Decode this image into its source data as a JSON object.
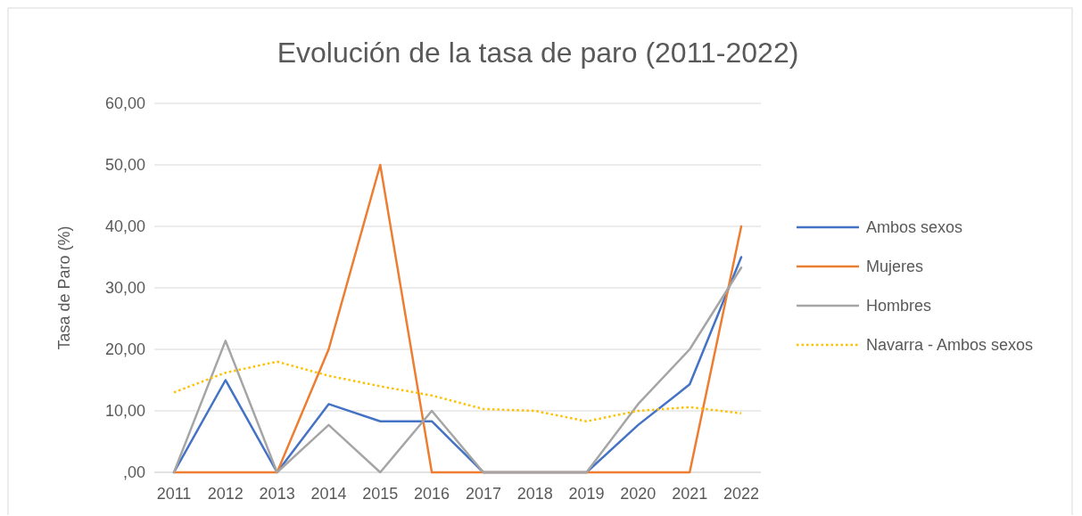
{
  "chart_data": {
    "type": "line",
    "title": "Evolución de la tasa de paro (2011-2022)",
    "ylabel": "Tasa de Paro (%)",
    "categories": [
      "2011",
      "2012",
      "2013",
      "2014",
      "2015",
      "2016",
      "2017",
      "2018",
      "2019",
      "2020",
      "2021",
      "2022"
    ],
    "series": [
      {
        "name": "Ambos sexos",
        "color": "#4472c4",
        "values": [
          0,
          15,
          0,
          11.1,
          8.3,
          8.3,
          0,
          0,
          0,
          7.7,
          14.3,
          35
        ]
      },
      {
        "name": "Mujeres",
        "color": "#ed7d31",
        "values": [
          0,
          0,
          0,
          20,
          50,
          0,
          0,
          0,
          0,
          0,
          0,
          40
        ]
      },
      {
        "name": "Hombres",
        "color": "#a5a5a5",
        "values": [
          0,
          21.4,
          0,
          7.7,
          0,
          10,
          0,
          0,
          0,
          11.1,
          20,
          33.3
        ]
      },
      {
        "name": "Navarra - Ambos sexos",
        "color": "#ffc000",
        "line_style": "dotted",
        "values": [
          13,
          16.2,
          18,
          15.7,
          14,
          12.5,
          10.3,
          10,
          8.3,
          10,
          10.6,
          9.6
        ]
      }
    ],
    "ylim": [
      0,
      60
    ],
    "yticks": [
      {
        "value": 0,
        "label": ",00"
      },
      {
        "value": 10,
        "label": "10,00"
      },
      {
        "value": 20,
        "label": "20,00"
      },
      {
        "value": 30,
        "label": "30,00"
      },
      {
        "value": 40,
        "label": "40,00"
      },
      {
        "value": 50,
        "label": "50,00"
      },
      {
        "value": 60,
        "label": "60,00"
      }
    ],
    "grid": "y",
    "legend": "right",
    "marker": "none",
    "line_style": "solid"
  }
}
